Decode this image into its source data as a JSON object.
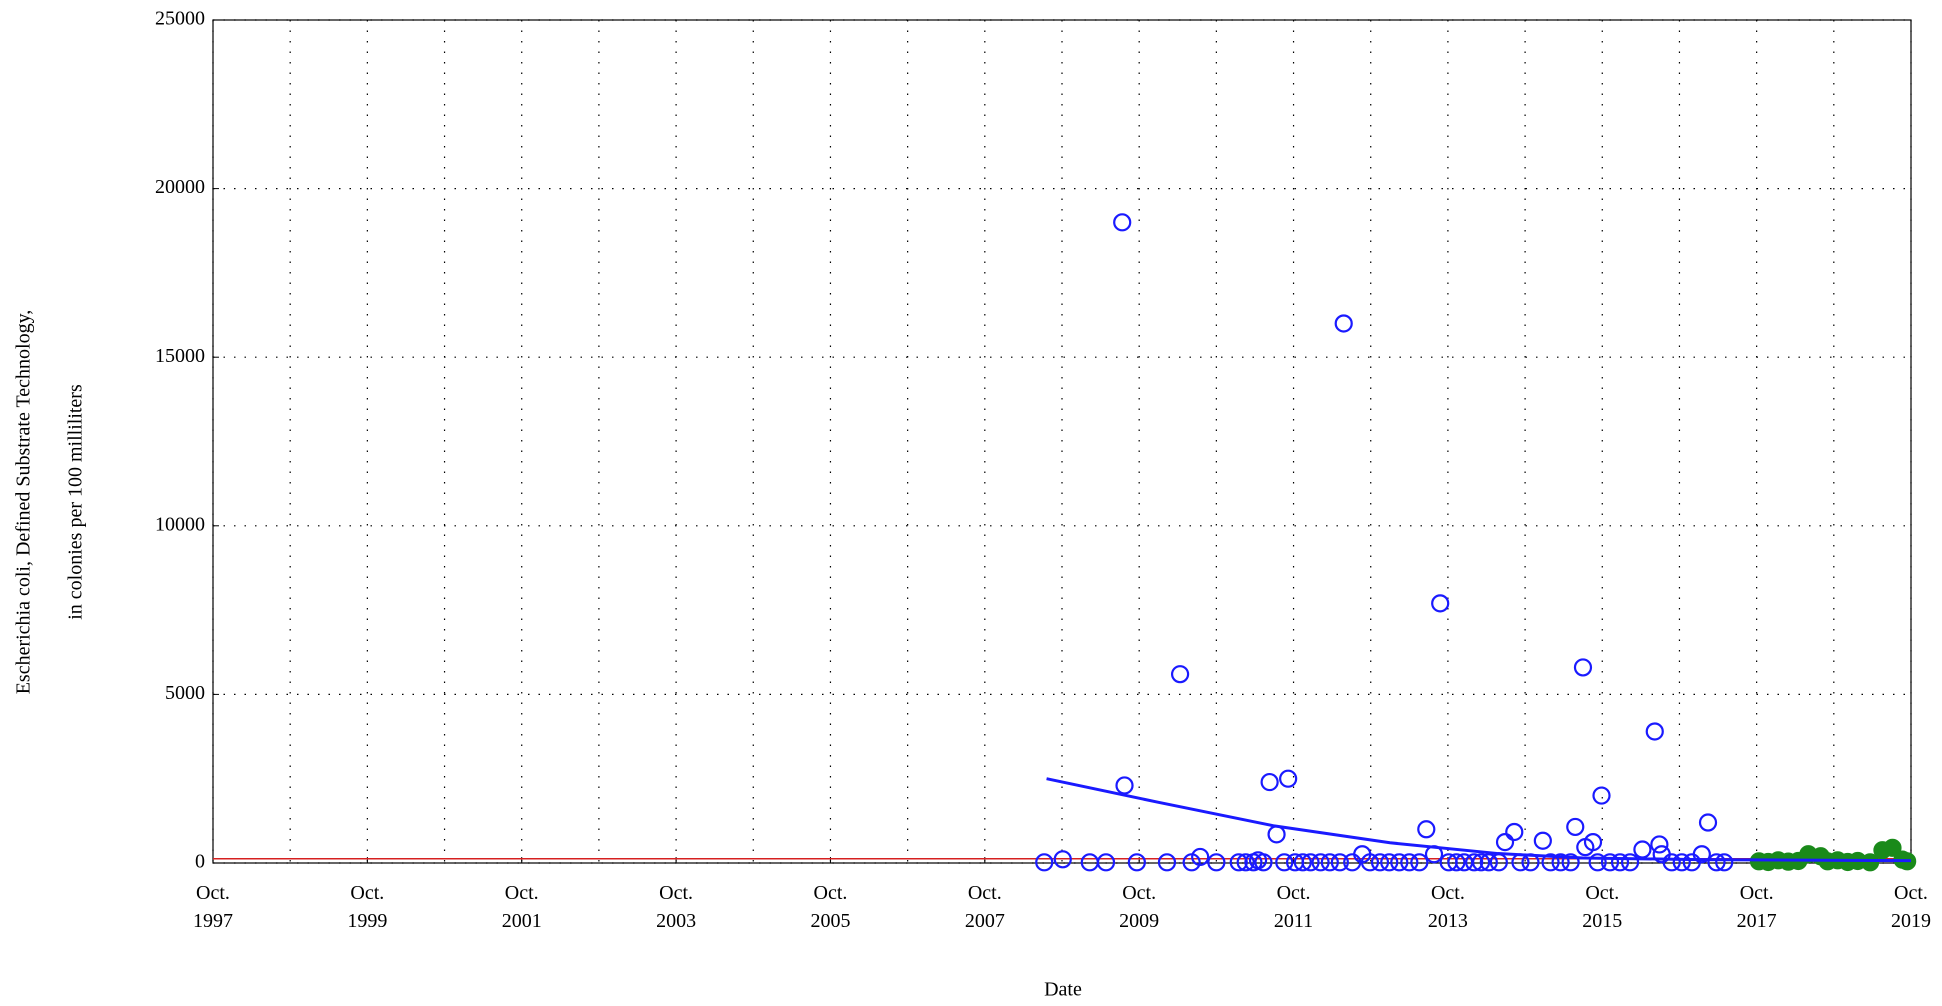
{
  "chart_data": {
    "type": "scatter",
    "xlabel": "Date",
    "ylabel": [
      "Escherichia coli, Defined Substrate Technology,",
      "in colonies per 100 milliliters"
    ],
    "xlim": [
      1997.75,
      2019.75
    ],
    "ylim": [
      0,
      25000
    ],
    "xticks": [
      {
        "value": 1997.75,
        "label": "Oct.\n1997"
      },
      {
        "value": 1999.75,
        "label": "Oct.\n1999"
      },
      {
        "value": 2001.75,
        "label": "Oct.\n2001"
      },
      {
        "value": 2003.75,
        "label": "Oct.\n2003"
      },
      {
        "value": 2005.75,
        "label": "Oct.\n2005"
      },
      {
        "value": 2007.75,
        "label": "Oct.\n2007"
      },
      {
        "value": 2009.75,
        "label": "Oct.\n2009"
      },
      {
        "value": 2011.75,
        "label": "Oct.\n2011"
      },
      {
        "value": 2013.75,
        "label": "Oct.\n2013"
      },
      {
        "value": 2015.75,
        "label": "Oct.\n2015"
      },
      {
        "value": 2017.75,
        "label": "Oct.\n2017"
      },
      {
        "value": 2019.75,
        "label": "Oct.\n2019"
      }
    ],
    "xgrid_minor": [
      1998.75,
      2000.75,
      2002.75,
      2004.75,
      2006.75,
      2008.75,
      2010.75,
      2012.75,
      2014.75,
      2016.75,
      2018.75
    ],
    "yticks": [
      0,
      5000,
      10000,
      15000,
      20000,
      25000
    ],
    "grid": true,
    "reference_line": {
      "value": 126,
      "color": "#d62020"
    },
    "series": [
      {
        "kind": "open",
        "color": "#1a1aff",
        "x": [
          2008.52,
          2008.76,
          2009.11,
          2009.32,
          2009.53,
          2009.56,
          2009.72,
          2010.11,
          2010.28,
          2010.43,
          2010.54,
          2010.75,
          2011.04,
          2011.13,
          2011.23,
          2011.29,
          2011.36,
          2011.44,
          2011.53,
          2011.63,
          2011.68,
          2011.77,
          2011.87,
          2011.97,
          2012.1,
          2012.22,
          2012.35,
          2012.4,
          2012.51,
          2012.64,
          2012.74,
          2012.87,
          2012.99,
          2013.12,
          2013.25,
          2013.38,
          2013.47,
          2013.57,
          2013.65,
          2013.76,
          2013.86,
          2013.96,
          2014.09,
          2014.18,
          2014.28,
          2014.41,
          2014.49,
          2014.61,
          2014.69,
          2014.82,
          2014.98,
          2015.08,
          2015.21,
          2015.34,
          2015.4,
          2015.5,
          2015.53,
          2015.63,
          2015.69,
          2015.74,
          2015.85,
          2015.98,
          2016.11,
          2016.27,
          2016.43,
          2016.49,
          2016.52,
          2016.65,
          2016.78,
          2016.91,
          2017.04,
          2017.12,
          2017.23,
          2017.33
        ],
        "values": [
          20,
          110,
          20,
          20,
          19000,
          2300,
          20,
          20,
          5600,
          20,
          180,
          20,
          20,
          20,
          20,
          80,
          20,
          2400,
          850,
          20,
          2500,
          20,
          20,
          20,
          20,
          20,
          20,
          16000,
          20,
          260,
          20,
          20,
          20,
          20,
          20,
          20,
          1000,
          260,
          7700,
          20,
          20,
          20,
          20,
          20,
          20,
          20,
          620,
          920,
          20,
          20,
          660,
          20,
          20,
          20,
          1070,
          5800,
          470,
          620,
          20,
          2000,
          20,
          20,
          20,
          400,
          3900,
          550,
          260,
          20,
          20,
          20,
          260,
          1200,
          20,
          20
        ]
      },
      {
        "kind": "filled",
        "color": "#1a8a1a",
        "x": [
          2017.78,
          2017.9,
          2018.03,
          2018.16,
          2018.29,
          2018.42,
          2018.58,
          2018.67,
          2018.8,
          2018.93,
          2019.06,
          2019.22,
          2019.38,
          2019.51,
          2019.64,
          2019.7
        ],
        "values": [
          50,
          30,
          80,
          40,
          60,
          260,
          200,
          50,
          80,
          30,
          60,
          20,
          380,
          450,
          100,
          50
        ]
      },
      {
        "kind": "line",
        "color": "#1a1aff",
        "x": [
          2008.55,
          2010,
          2011.5,
          2013,
          2014.4,
          2015.5,
          2017,
          2019.75
        ],
        "values": [
          2500,
          1800,
          1100,
          600,
          280,
          150,
          100,
          70
        ]
      }
    ]
  }
}
